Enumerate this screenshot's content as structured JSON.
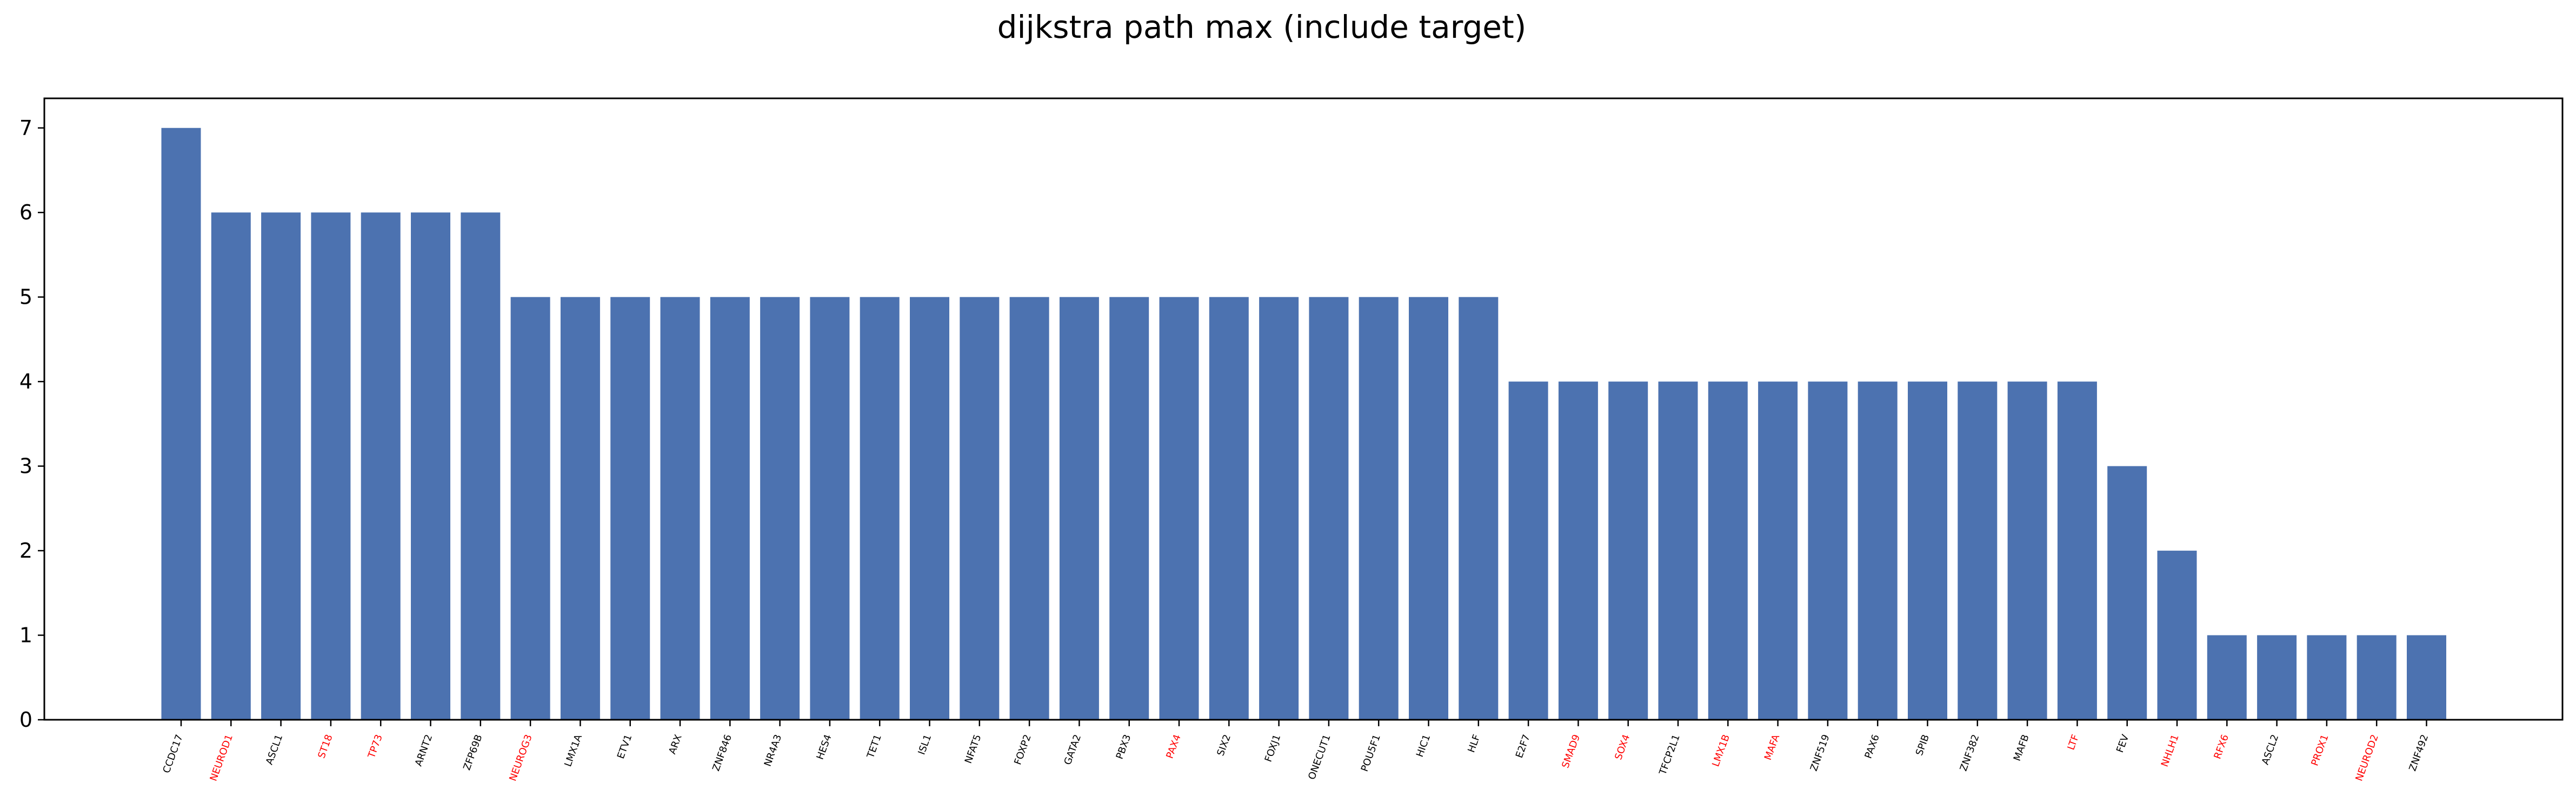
{
  "chart_data": {
    "type": "bar",
    "title": "dijkstra path max (include target)",
    "xlabel": "",
    "ylabel": "",
    "ylim": [
      0,
      7.35
    ],
    "yticks": [
      0,
      1,
      2,
      3,
      4,
      5,
      6,
      7
    ],
    "grid": false,
    "legend": "none",
    "bar_color": "#4c72b0",
    "label_colors": {
      "default": "#000000",
      "highlight": "#ff0000"
    },
    "categories": [
      "CCDC17",
      "NEUROD1",
      "ASCL1",
      "ST18",
      "TP73",
      "ARNT2",
      "ZFP69B",
      "NEUROG3",
      "LMX1A",
      "ETV1",
      "ARX",
      "ZNF846",
      "NR4A3",
      "HES4",
      "TET1",
      "ISL1",
      "NFAT5",
      "FOXP2",
      "GATA2",
      "PBX3",
      "PAX4",
      "SIX2",
      "FOXJ1",
      "ONECUT1",
      "POU5F1",
      "HIC1",
      "HLF",
      "E2F7",
      "SMAD9",
      "SOX4",
      "TFCP2L1",
      "LMX1B",
      "MAFA",
      "ZNF519",
      "PAX6",
      "SPIB",
      "ZNF382",
      "MAFB",
      "LTF",
      "FEV",
      "NHLH1",
      "RFX6",
      "ASCL2",
      "PROX1",
      "NEUROD2",
      "ZNF492"
    ],
    "values": [
      7,
      6,
      6,
      6,
      6,
      6,
      6,
      5,
      5,
      5,
      5,
      5,
      5,
      5,
      5,
      5,
      5,
      5,
      5,
      5,
      5,
      5,
      5,
      5,
      5,
      5,
      5,
      4,
      4,
      4,
      4,
      4,
      4,
      4,
      4,
      4,
      4,
      4,
      4,
      3,
      2,
      1,
      1,
      1,
      1,
      1
    ],
    "highlighted": [
      false,
      true,
      false,
      true,
      true,
      false,
      false,
      true,
      false,
      false,
      false,
      false,
      false,
      false,
      false,
      false,
      false,
      false,
      false,
      false,
      true,
      false,
      false,
      false,
      false,
      false,
      false,
      false,
      true,
      true,
      false,
      true,
      true,
      false,
      false,
      false,
      false,
      false,
      true,
      false,
      true,
      true,
      false,
      true,
      true,
      false
    ]
  }
}
